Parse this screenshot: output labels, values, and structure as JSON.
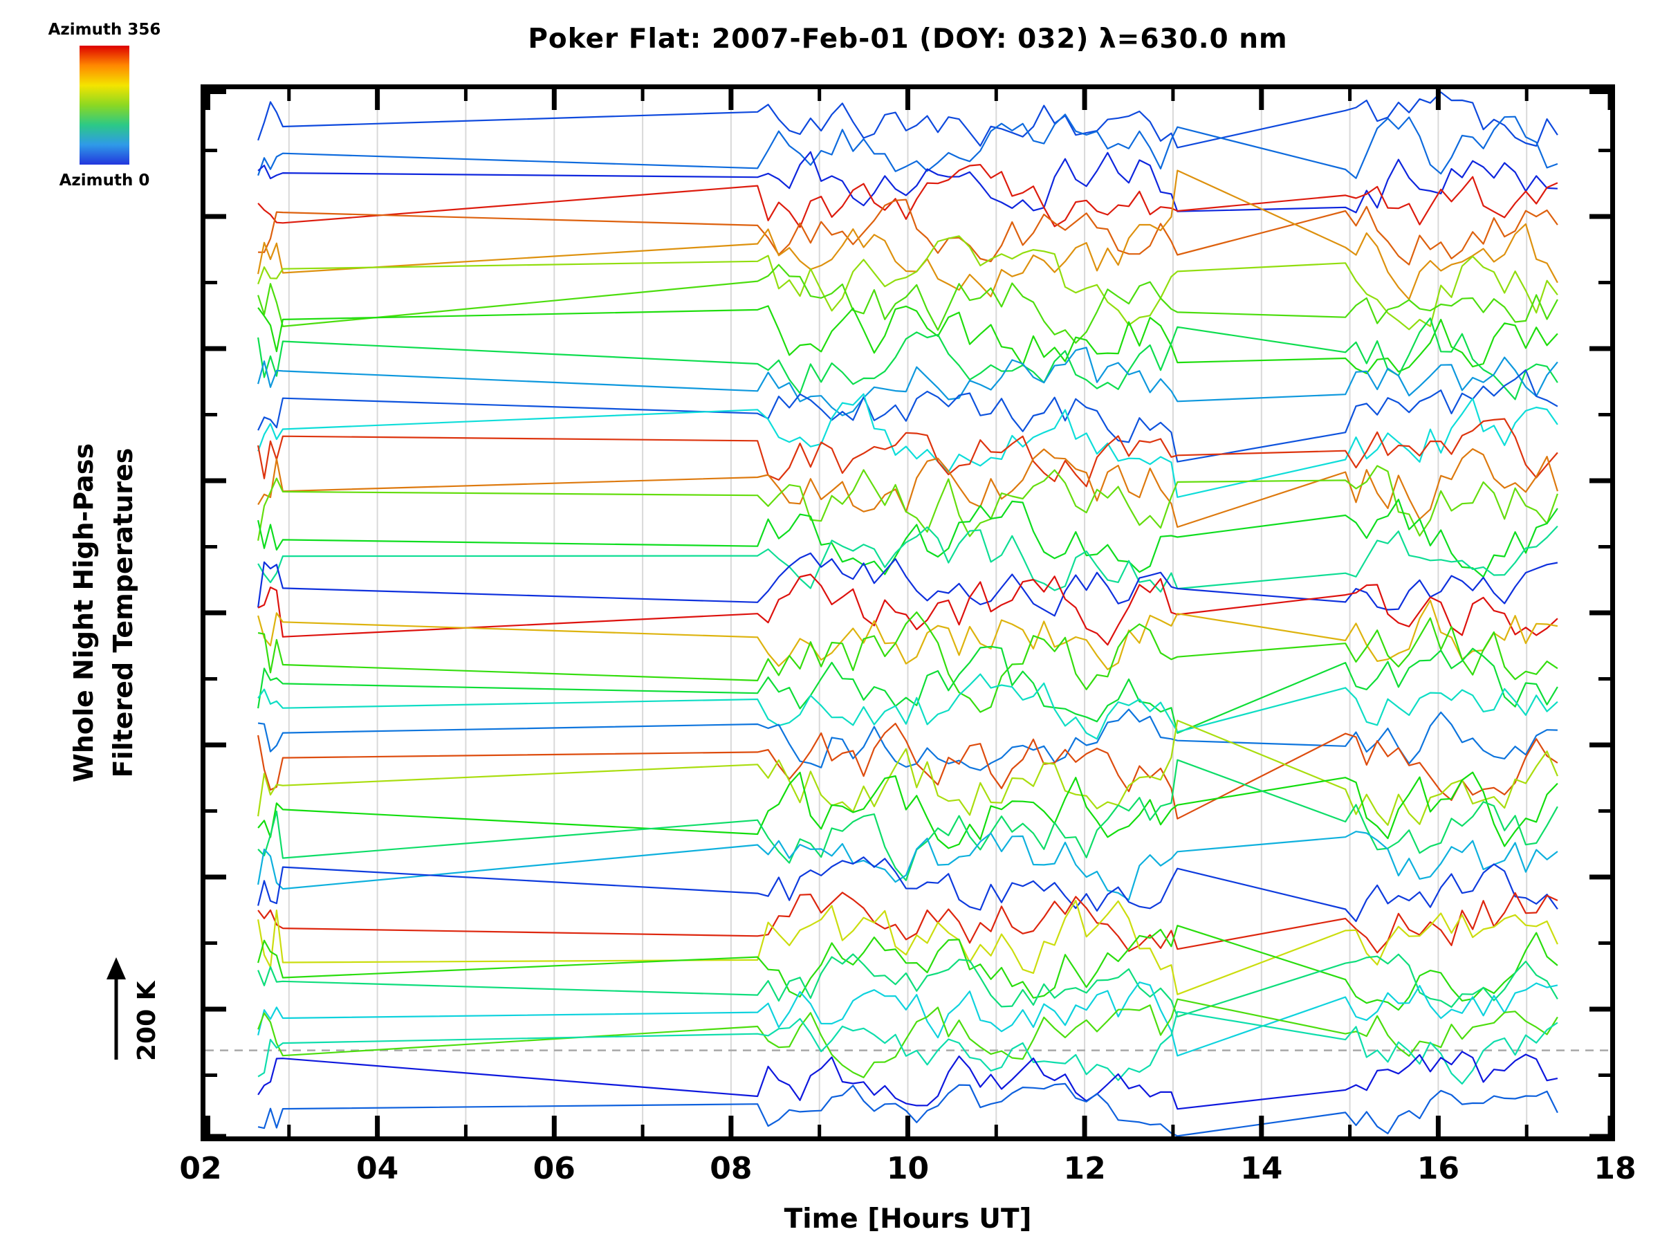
{
  "title": "Poker Flat: 2007-Feb-01 (DOY: 032) λ=630.0 nm",
  "colorbar": {
    "top_label": "Azimuth 356",
    "bottom_label": "Azimuth 0",
    "stops": [
      "#dd0000",
      "#ff8800",
      "#f4e400",
      "#8cd822",
      "#2cc986",
      "#2f9ae8",
      "#2236dd"
    ]
  },
  "y_axis": {
    "label_line1": "Whole Night High-Pass",
    "label_line2": "Filtered Temperatures"
  },
  "x_axis": {
    "label": "Time [Hours UT]",
    "tick_labels": [
      "02",
      "04",
      "06",
      "08",
      "10",
      "12",
      "14",
      "16",
      "18"
    ]
  },
  "scale_marker": {
    "label": "200 K"
  },
  "colors": {
    "grid": "#d9d9d9",
    "dashed": "#a8a8a8",
    "axis": "#000000",
    "background": "#ffffff"
  },
  "chart_data": {
    "type": "line",
    "title": "Poker Flat: 2007-Feb-01 (DOY: 032) λ=630.0 nm",
    "xlabel": "Time [Hours UT]",
    "ylabel": "Whole Night High-Pass Filtered Temperatures",
    "xlim": [
      2,
      18
    ],
    "x_major_ticks": [
      2,
      4,
      6,
      8,
      10,
      12,
      14,
      16,
      18
    ],
    "x_minor_tick_step": 1,
    "grid_hours": [
      3,
      4,
      5,
      6,
      7,
      8,
      9,
      10,
      11,
      12,
      13,
      14,
      15,
      16,
      17
    ],
    "y_major_divisions": 8,
    "y_minor_divisions": 16,
    "dashed_line_y_fraction": 0.914,
    "scale_bar_kelvin": 200,
    "colormap": {
      "name": "rainbow-blue-to-red",
      "azimuth_min": 0,
      "azimuth_max": 356
    },
    "segments": {
      "start_cluster": [
        2.65,
        2.95
      ],
      "sparse": [
        2.95,
        8.3
      ],
      "active_1": [
        8.3,
        13.05
      ],
      "gap": [
        13.05,
        14.95
      ],
      "active_2": [
        14.95,
        17.45
      ]
    },
    "series": [
      {
        "azimuth": 25,
        "baseline": 0.035,
        "amplitude": 0.02,
        "seed": 1
      },
      {
        "azimuth": 40,
        "baseline": 0.062,
        "amplitude": 0.024,
        "seed": 2
      },
      {
        "azimuth": 10,
        "baseline": 0.09,
        "amplitude": 0.022,
        "seed": 3
      },
      {
        "azimuth": 350,
        "baseline": 0.115,
        "amplitude": 0.02,
        "seed": 4
      },
      {
        "azimuth": 320,
        "baseline": 0.138,
        "amplitude": 0.022,
        "seed": 5
      },
      {
        "azimuth": 300,
        "baseline": 0.162,
        "amplitude": 0.024,
        "seed": 6
      },
      {
        "azimuth": 235,
        "baseline": 0.186,
        "amplitude": 0.026,
        "seed": 7
      },
      {
        "azimuth": 205,
        "baseline": 0.21,
        "amplitude": 0.024,
        "seed": 8
      },
      {
        "azimuth": 185,
        "baseline": 0.234,
        "amplitude": 0.026,
        "seed": 9
      },
      {
        "azimuth": 150,
        "baseline": 0.258,
        "amplitude": 0.024,
        "seed": 10
      },
      {
        "azimuth": 60,
        "baseline": 0.282,
        "amplitude": 0.022,
        "seed": 11
      },
      {
        "azimuth": 30,
        "baseline": 0.306,
        "amplitude": 0.02,
        "seed": 12
      },
      {
        "azimuth": 90,
        "baseline": 0.33,
        "amplitude": 0.024,
        "seed": 13
      },
      {
        "azimuth": 340,
        "baseline": 0.354,
        "amplitude": 0.022,
        "seed": 14
      },
      {
        "azimuth": 310,
        "baseline": 0.378,
        "amplitude": 0.026,
        "seed": 15
      },
      {
        "azimuth": 215,
        "baseline": 0.402,
        "amplitude": 0.028,
        "seed": 16
      },
      {
        "azimuth": 170,
        "baseline": 0.426,
        "amplitude": 0.024,
        "seed": 17
      },
      {
        "azimuth": 120,
        "baseline": 0.45,
        "amplitude": 0.022,
        "seed": 18
      },
      {
        "azimuth": 15,
        "baseline": 0.474,
        "amplitude": 0.02,
        "seed": 19
      },
      {
        "azimuth": 355,
        "baseline": 0.498,
        "amplitude": 0.024,
        "seed": 20
      },
      {
        "azimuth": 285,
        "baseline": 0.522,
        "amplitude": 0.026,
        "seed": 21
      },
      {
        "azimuth": 195,
        "baseline": 0.546,
        "amplitude": 0.028,
        "seed": 22
      },
      {
        "azimuth": 160,
        "baseline": 0.57,
        "amplitude": 0.024,
        "seed": 23
      },
      {
        "azimuth": 100,
        "baseline": 0.594,
        "amplitude": 0.022,
        "seed": 24
      },
      {
        "azimuth": 45,
        "baseline": 0.618,
        "amplitude": 0.02,
        "seed": 25
      },
      {
        "azimuth": 330,
        "baseline": 0.642,
        "amplitude": 0.024,
        "seed": 26
      },
      {
        "azimuth": 245,
        "baseline": 0.666,
        "amplitude": 0.026,
        "seed": 27
      },
      {
        "azimuth": 180,
        "baseline": 0.69,
        "amplitude": 0.028,
        "seed": 28
      },
      {
        "azimuth": 140,
        "baseline": 0.714,
        "amplitude": 0.024,
        "seed": 29
      },
      {
        "azimuth": 70,
        "baseline": 0.738,
        "amplitude": 0.022,
        "seed": 30
      },
      {
        "azimuth": 20,
        "baseline": 0.762,
        "amplitude": 0.02,
        "seed": 31
      },
      {
        "azimuth": 345,
        "baseline": 0.786,
        "amplitude": 0.024,
        "seed": 32
      },
      {
        "azimuth": 260,
        "baseline": 0.81,
        "amplitude": 0.026,
        "seed": 33
      },
      {
        "azimuth": 190,
        "baseline": 0.832,
        "amplitude": 0.024,
        "seed": 34
      },
      {
        "azimuth": 130,
        "baseline": 0.854,
        "amplitude": 0.022,
        "seed": 35
      },
      {
        "azimuth": 85,
        "baseline": 0.876,
        "amplitude": 0.022,
        "seed": 36
      },
      {
        "azimuth": 205,
        "baseline": 0.898,
        "amplitude": 0.02,
        "seed": 37
      },
      {
        "azimuth": 110,
        "baseline": 0.918,
        "amplitude": 0.02,
        "seed": 38
      },
      {
        "azimuth": 5,
        "baseline": 0.94,
        "amplitude": 0.018,
        "seed": 39
      },
      {
        "azimuth": 35,
        "baseline": 0.972,
        "amplitude": 0.016,
        "seed": 40
      }
    ]
  }
}
